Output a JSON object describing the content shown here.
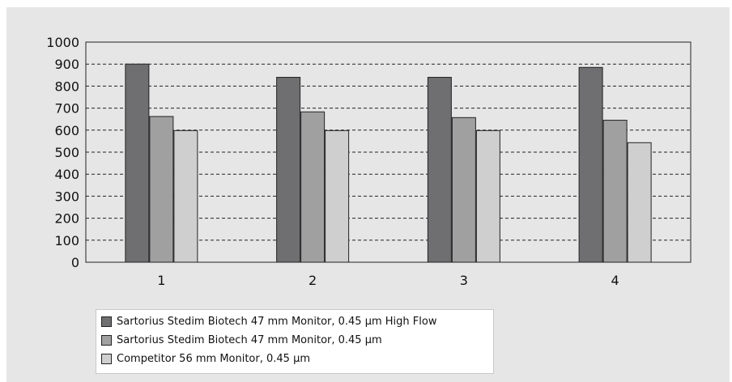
{
  "chart_data": {
    "type": "bar",
    "title": "",
    "xlabel": "",
    "ylabel": "",
    "categories": [
      "1",
      "2",
      "3",
      "4"
    ],
    "ylim": [
      0,
      1000
    ],
    "yticks": [
      0,
      100,
      200,
      300,
      400,
      500,
      600,
      700,
      800,
      900,
      1000
    ],
    "grid": "horizontal dashed",
    "legend_position": "bottom",
    "series": [
      {
        "name": "Sartorius Stedim Biotech 47 mm Monitor, 0.45 µm High Flow",
        "color": "#6f6f71",
        "values": [
          900,
          840,
          840,
          885
        ]
      },
      {
        "name": "Sartorius Stedim Biotech 47 mm Monitor, 0.45 µm",
        "color": "#a0a0a1",
        "values": [
          662,
          683,
          657,
          645
        ]
      },
      {
        "name": "Competitor 56 mm Monitor, 0.45 µm",
        "color": "#cfcfd0",
        "values": [
          598,
          598,
          598,
          543
        ]
      }
    ]
  }
}
